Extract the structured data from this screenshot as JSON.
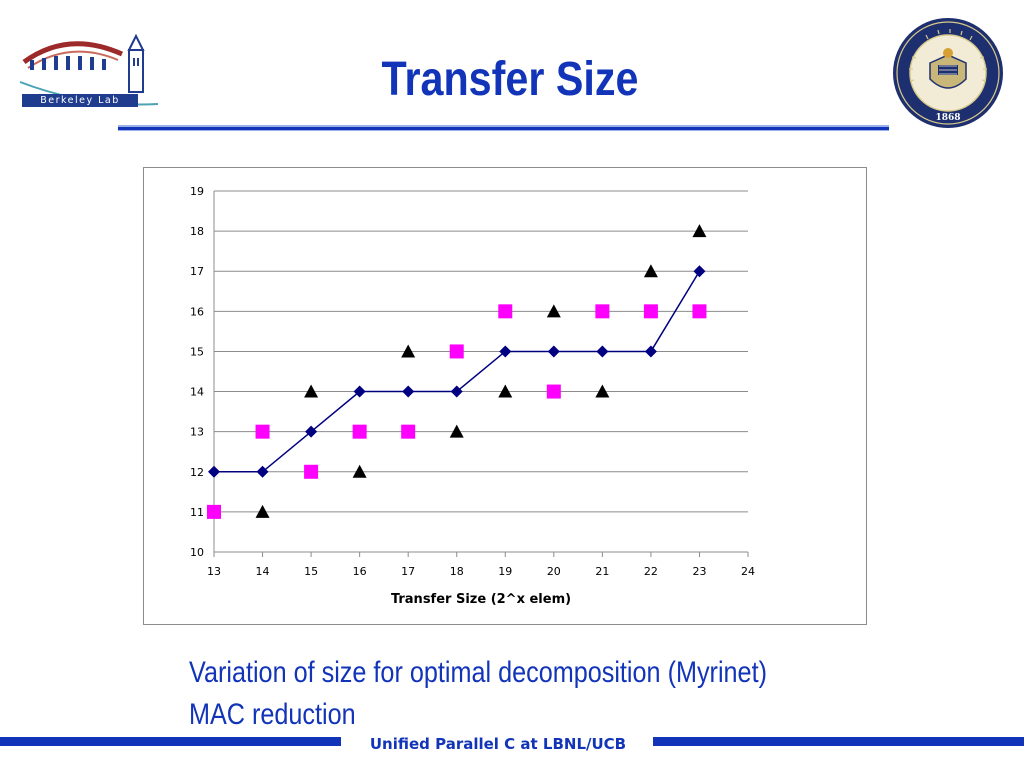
{
  "slide": {
    "title": "Transfer Size",
    "caption_lines": [
      "Variation of size for optimal decomposition (Myrinet)",
      "MAC reduction"
    ],
    "footer": "Unified Parallel C at LBNL/UCB",
    "accent_color": "#1234b8"
  },
  "logos": {
    "left": {
      "icon": "berkeley-lab-logo",
      "text": "Berkeley Lab"
    },
    "right": {
      "icon": "university-of-california-seal",
      "year": "1868"
    }
  },
  "chart_data": {
    "type": "scatter",
    "title": "",
    "xlabel": "Transfer Size (2^x elem)",
    "ylabel": "",
    "xlim": [
      13,
      24
    ],
    "ylim": [
      10,
      19
    ],
    "xticks": [
      13,
      14,
      15,
      16,
      17,
      18,
      19,
      20,
      21,
      22,
      23,
      24
    ],
    "yticks": [
      10,
      11,
      12,
      13,
      14,
      15,
      16,
      17,
      18,
      19
    ],
    "grid": "horizontal",
    "legend": "none",
    "series": [
      {
        "marker": "diamond",
        "line": true,
        "color": "#000080",
        "x": [
          13,
          14,
          15,
          16,
          17,
          18,
          19,
          20,
          21,
          22,
          23
        ],
        "y": [
          12,
          12,
          13,
          14,
          14,
          14,
          15,
          15,
          15,
          15,
          17
        ]
      },
      {
        "marker": "square",
        "line": false,
        "color": "#ff00ff",
        "x": [
          13,
          14,
          15,
          16,
          17,
          18,
          19,
          20,
          21,
          22,
          23
        ],
        "y": [
          11,
          13,
          12,
          13,
          13,
          15,
          16,
          14,
          16,
          16,
          16
        ]
      },
      {
        "marker": "triangle",
        "line": false,
        "color": "#000000",
        "x": [
          14,
          15,
          16,
          17,
          18,
          19,
          20,
          21,
          22,
          23
        ],
        "y": [
          11,
          14,
          12,
          15,
          13,
          14,
          16,
          14,
          17,
          18
        ]
      }
    ]
  }
}
